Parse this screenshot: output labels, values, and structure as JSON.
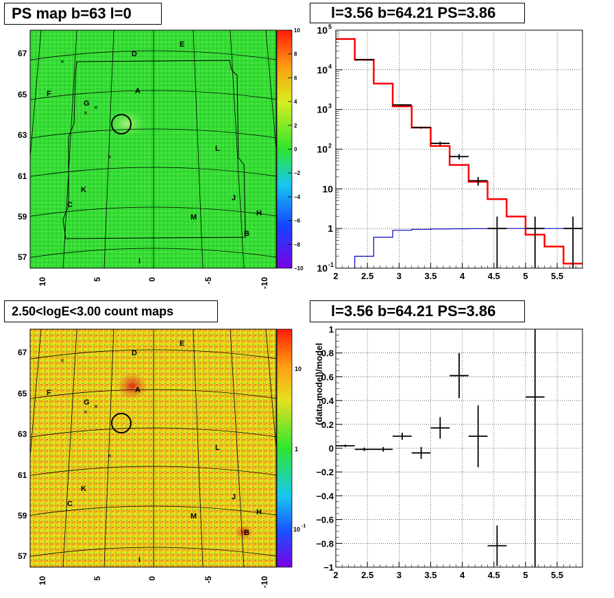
{
  "panels": {
    "ps_map": {
      "title": "PS map b=63 l=0",
      "lat_ticks": [
        "67",
        "65",
        "63",
        "61",
        "59",
        "57"
      ],
      "lon_ticks": [
        "10",
        "5",
        "0",
        "-5",
        "-10"
      ],
      "colorbar_ticks": [
        "10",
        "8",
        "6",
        "4",
        "2",
        "0",
        "−2",
        "−4",
        "−6",
        "−8",
        "−10"
      ],
      "sources": [
        "D",
        "E",
        "A",
        "F",
        "G",
        "L",
        "K",
        "C",
        "J",
        "H",
        "M",
        "B",
        "I"
      ],
      "colors": {
        "map_fill": "#35dc35",
        "map_light": "#52ec4a",
        "map_dark": "#2fd12f"
      }
    },
    "count_map": {
      "title": "2.50<logE<3.00 count maps",
      "lat_ticks": [
        "67",
        "65",
        "63",
        "61",
        "59",
        "57"
      ],
      "lon_ticks": [
        "10",
        "5",
        "0",
        "-5",
        "-10"
      ],
      "colorbar_ticks": [
        "10",
        "1",
        "10"
      ],
      "colorbar_exponent": "-1",
      "sources": [
        "D",
        "E",
        "A",
        "F",
        "G",
        "L",
        "K",
        "C",
        "J",
        "H",
        "M",
        "B",
        "I"
      ],
      "colors": {
        "low": "#f3e020",
        "high": "#e63c1e"
      }
    },
    "spectrum": {
      "title": "l=3.56 b=64.21 PS=3.86"
    },
    "residual": {
      "title": "l=3.56 b=64.21 PS=3.86",
      "ylabel": "(data-model)/model"
    }
  },
  "chart_data": [
    {
      "type": "line",
      "title": "l=3.56 b=64.21 PS=3.86",
      "log_y": true,
      "xlim": [
        2,
        5.9
      ],
      "ylim": [
        0.1,
        100000
      ],
      "grid": true,
      "x_ticks": [
        "2",
        "2.5",
        "3",
        "3.5",
        "4",
        "4.5",
        "5",
        "5.5"
      ],
      "y_ticks": [
        {
          "label": "10",
          "exp": "-1"
        },
        {
          "label": "1",
          "exp": ""
        },
        {
          "label": "10",
          "exp": ""
        },
        {
          "label": "10",
          "exp": "2"
        },
        {
          "label": "10",
          "exp": "3"
        },
        {
          "label": "10",
          "exp": "4"
        },
        {
          "label": "10",
          "exp": "5"
        }
      ],
      "bin_edges": [
        2.0,
        2.3,
        2.6,
        2.9,
        3.2,
        3.5,
        3.8,
        4.1,
        4.4,
        4.7,
        5.0,
        5.3,
        5.6,
        5.9
      ],
      "series": [
        {
          "kind": "model-step",
          "color": "#ff0000",
          "values": [
            60000,
            18000,
            4500,
            1200,
            350,
            120,
            40,
            15,
            5.5,
            2.0,
            0.7,
            0.35,
            0.13
          ]
        },
        {
          "kind": "step",
          "color": "#0000cc",
          "values": [
            0.05,
            0.2,
            0.6,
            0.9,
            0.95,
            0.97,
            0.98,
            0.99,
            0.99,
            1.0,
            1.0,
            1.0,
            1.0
          ]
        },
        {
          "kind": "data-points",
          "color": "#000000",
          "points": [
            {
              "x": 2.45,
              "y": 18000,
              "xerr": 0.15,
              "lo": 17800,
              "hi": 18200
            },
            {
              "x": 3.05,
              "y": 1300,
              "xerr": 0.15,
              "lo": 1240,
              "hi": 1360
            },
            {
              "x": 3.35,
              "y": 350,
              "xerr": 0.15,
              "lo": 330,
              "hi": 370
            },
            {
              "x": 3.65,
              "y": 140,
              "xerr": 0.15,
              "lo": 125,
              "hi": 155
            },
            {
              "x": 3.95,
              "y": 65,
              "xerr": 0.15,
              "lo": 55,
              "hi": 75
            },
            {
              "x": 4.25,
              "y": 16,
              "xerr": 0.15,
              "lo": 12,
              "hi": 20
            },
            {
              "x": 4.55,
              "y": 1,
              "xerr": 0.15,
              "lo": 0.1,
              "hi": 2
            },
            {
              "x": 5.15,
              "y": 1,
              "xerr": 0.15,
              "lo": 0.1,
              "hi": 2
            },
            {
              "x": 5.75,
              "y": 1,
              "xerr": 0.15,
              "lo": 0.1,
              "hi": 2
            }
          ]
        }
      ]
    },
    {
      "type": "scatter",
      "title": "l=3.56 b=64.21 PS=3.86",
      "ylabel": "(data-model)/model",
      "xlim": [
        2,
        5.9
      ],
      "ylim": [
        -1,
        1
      ],
      "grid": true,
      "x_ticks": [
        "2",
        "2.5",
        "3",
        "3.5",
        "4",
        "4.5",
        "5",
        "5.5"
      ],
      "y_ticks": [
        "−1",
        "−0.8",
        "−0.6",
        "−0.4",
        "−0.2",
        "0",
        "0.2",
        "0.4",
        "0.6",
        "0.8",
        "1"
      ],
      "points": [
        {
          "x": 2.15,
          "y": 0.02,
          "xerr": 0.15,
          "yerr": 0.01
        },
        {
          "x": 2.45,
          "y": -0.01,
          "xerr": 0.15,
          "yerr": 0.015
        },
        {
          "x": 2.75,
          "y": -0.01,
          "xerr": 0.15,
          "yerr": 0.02
        },
        {
          "x": 3.05,
          "y": 0.1,
          "xerr": 0.15,
          "yerr": 0.03
        },
        {
          "x": 3.35,
          "y": -0.04,
          "xerr": 0.15,
          "yerr": 0.05
        },
        {
          "x": 3.65,
          "y": 0.17,
          "xerr": 0.15,
          "yerr": 0.09
        },
        {
          "x": 3.95,
          "y": 0.61,
          "xerr": 0.15,
          "yerr": 0.19
        },
        {
          "x": 4.25,
          "y": 0.1,
          "xerr": 0.15,
          "yerr": 0.26
        },
        {
          "x": 4.55,
          "y": -0.82,
          "xerr": 0.15,
          "yerr": 0.17
        },
        {
          "x": 5.15,
          "y": 0.43,
          "xerr": 0.15,
          "yerr": 1.6
        }
      ]
    }
  ]
}
